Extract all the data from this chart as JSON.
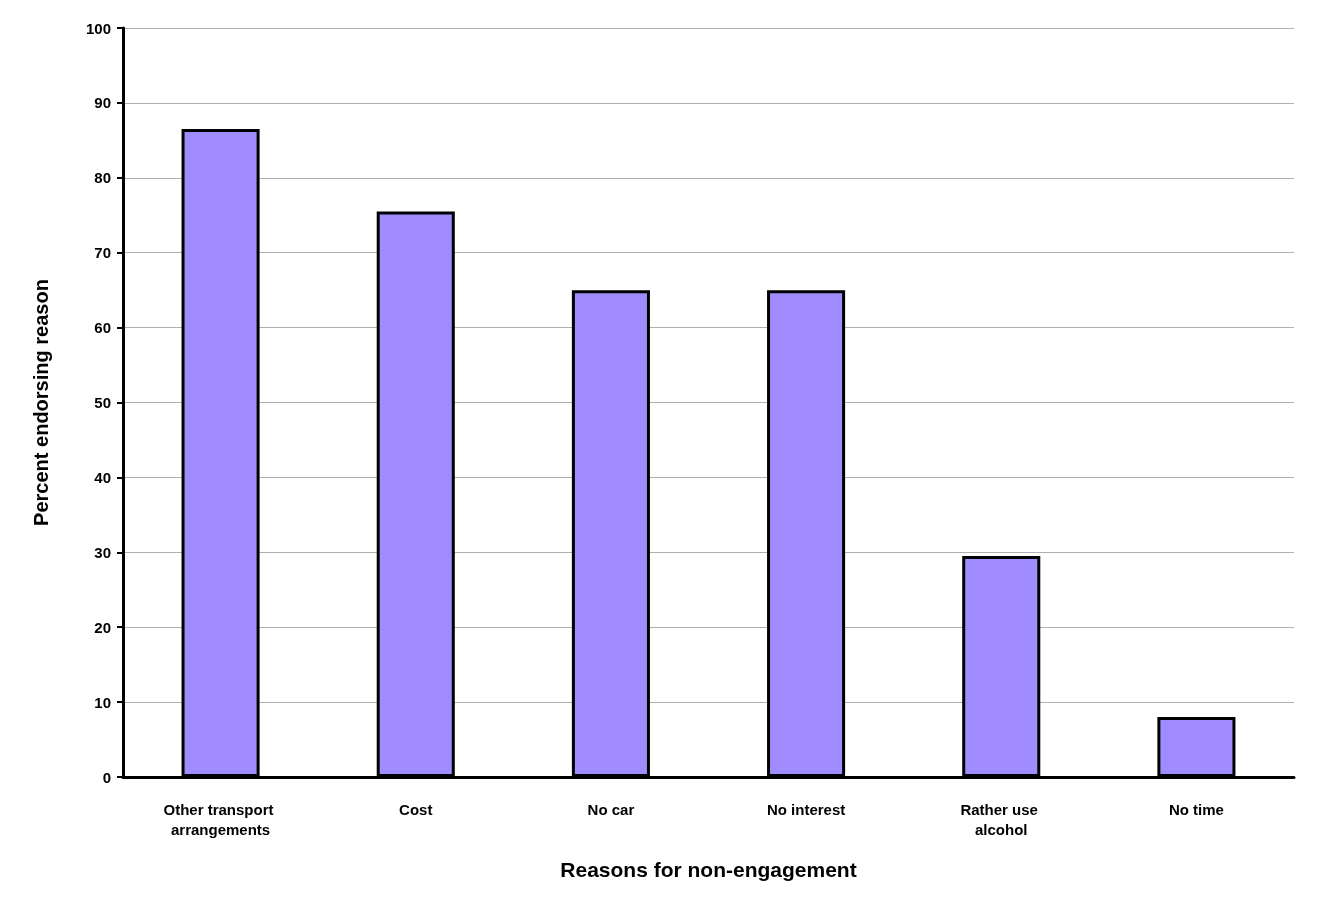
{
  "chart_data": {
    "type": "bar",
    "xlabel": "Reasons for non-engagement",
    "ylabel": "Percent endorsing reason",
    "categories": [
      "Other transport arrangements",
      "Cost",
      "No car",
      "No interest",
      "Rather use alcohol",
      "No time"
    ],
    "values": [
      86.5,
      75.5,
      65,
      65,
      29.5,
      8
    ],
    "color": "#a08cff",
    "ylim": [
      0,
      100
    ],
    "yticks": [
      0,
      10,
      20,
      30,
      40,
      50,
      60,
      70,
      80,
      90,
      100
    ],
    "grid": "y"
  }
}
